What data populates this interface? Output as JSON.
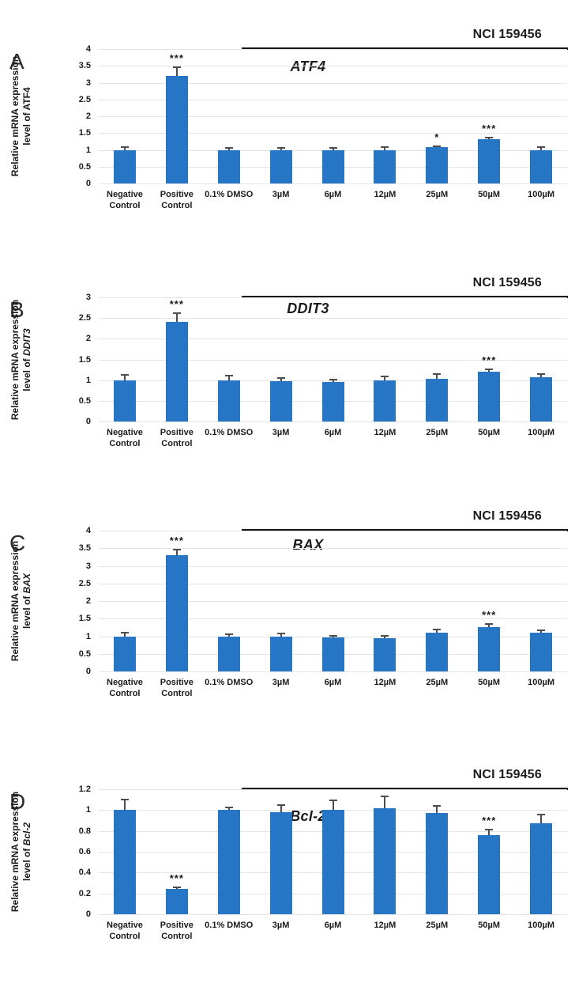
{
  "colors": {
    "bar": "#2776C6",
    "grid": "#e4e4e4",
    "error_bar": "#4d4d4d",
    "bracket_line": "#141414",
    "text": "#1b1b1b"
  },
  "chart_data": [
    {
      "type": "bar",
      "panel": "A",
      "title": "ATF4",
      "treatment_label": "NCI 159456",
      "ylabel": "Relative mRNA expression level of ATF4",
      "ylabel_line1": "Relative mRNA expression",
      "ylabel_line2_prefix": "level of ",
      "gene": "ATF4",
      "gene_italic": false,
      "ylim": [
        0,
        4
      ],
      "ymax": 4,
      "yticks": [
        "4",
        "3.5",
        "3",
        "2.5",
        "2",
        "1.5",
        "1",
        "0.5",
        "0"
      ],
      "grid": true,
      "categories": [
        "Negative\nControl",
        "Positive\nControl",
        "0.1% DMSO",
        "3µM",
        "6µM",
        "12µM",
        "25µM",
        "50µM",
        "100µM"
      ],
      "values": [
        1.0,
        3.2,
        1.0,
        1.0,
        0.98,
        0.98,
        1.08,
        1.32,
        1.0
      ],
      "errors": [
        0.08,
        0.27,
        0.07,
        0.06,
        0.09,
        0.1,
        0.03,
        0.05,
        0.09
      ],
      "significance": [
        "",
        "***",
        "",
        "",
        "",
        "",
        "*",
        "***",
        ""
      ]
    },
    {
      "type": "bar",
      "panel": "B",
      "title": "DDIT3",
      "treatment_label": "NCI 159456",
      "ylabel": "Relative mRNA expression level of DDIT3",
      "ylabel_line1": "Relative mRNA expression",
      "ylabel_line2_prefix": "level of ",
      "gene": "DDIT3",
      "gene_italic": true,
      "ylim": [
        0,
        3
      ],
      "ymax": 3,
      "yticks": [
        "3",
        "2.5",
        "2",
        "1.5",
        "1",
        "0.5",
        "0"
      ],
      "grid": true,
      "categories": [
        "Negative\nControl",
        "Positive\nControl",
        "0.1% DMSO",
        "3µM",
        "6µM",
        "12µM",
        "25µM",
        "50µM",
        "100µM"
      ],
      "values": [
        1.0,
        2.4,
        1.0,
        0.98,
        0.96,
        1.0,
        1.03,
        1.2,
        1.07
      ],
      "errors": [
        0.12,
        0.22,
        0.1,
        0.08,
        0.06,
        0.08,
        0.12,
        0.06,
        0.07
      ],
      "significance": [
        "",
        "***",
        "",
        "",
        "",
        "",
        "",
        "***",
        ""
      ]
    },
    {
      "type": "bar",
      "panel": "C",
      "title": "BAX",
      "treatment_label": "NCI 159456",
      "ylabel": "Relative mRNA expression level of BAX",
      "ylabel_line1": "Relative mRNA expression",
      "ylabel_line2_prefix": "level of ",
      "gene": "BAX",
      "gene_italic": true,
      "ylim": [
        0,
        4
      ],
      "ymax": 4,
      "yticks": [
        "4",
        "3.5",
        "3",
        "2.5",
        "2",
        "1.5",
        "1",
        "0.5",
        "0"
      ],
      "grid": true,
      "categories": [
        "Negative\nControl",
        "Positive\nControl",
        "0.1% DMSO",
        "3µM",
        "6µM",
        "12µM",
        "25µM",
        "50µM",
        "100µM"
      ],
      "values": [
        1.0,
        3.3,
        1.0,
        1.0,
        0.97,
        0.95,
        1.1,
        1.27,
        1.1
      ],
      "errors": [
        0.1,
        0.17,
        0.05,
        0.08,
        0.05,
        0.06,
        0.1,
        0.07,
        0.07
      ],
      "significance": [
        "",
        "***",
        "",
        "",
        "",
        "",
        "",
        "***",
        ""
      ]
    },
    {
      "type": "bar",
      "panel": "D",
      "title": "Bcl-2",
      "treatment_label": "NCI 159456",
      "ylabel": "Relative mRNA expression level of Bcl-2",
      "ylabel_line1": "Relative mRNA expression",
      "ylabel_line2_prefix": "level of ",
      "gene": "Bcl-2",
      "gene_italic": true,
      "ylim": [
        0,
        1.2
      ],
      "ymax": 1.2,
      "yticks": [
        "1.2",
        "1",
        "0.8",
        "0.6",
        "0.4",
        "0.2",
        "0"
      ],
      "grid": true,
      "categories": [
        "Negative\nControl",
        "Positive\nControl",
        "0.1% DMSO",
        "3µM",
        "6µM",
        "12µM",
        "25µM",
        "50µM",
        "100µM"
      ],
      "values": [
        1.0,
        0.24,
        1.0,
        0.98,
        1.0,
        1.02,
        0.97,
        0.76,
        0.87
      ],
      "errors": [
        0.1,
        0.02,
        0.025,
        0.07,
        0.09,
        0.11,
        0.07,
        0.05,
        0.085
      ],
      "significance": [
        "",
        "***",
        "",
        "",
        "",
        "",
        "",
        "***",
        ""
      ]
    }
  ]
}
